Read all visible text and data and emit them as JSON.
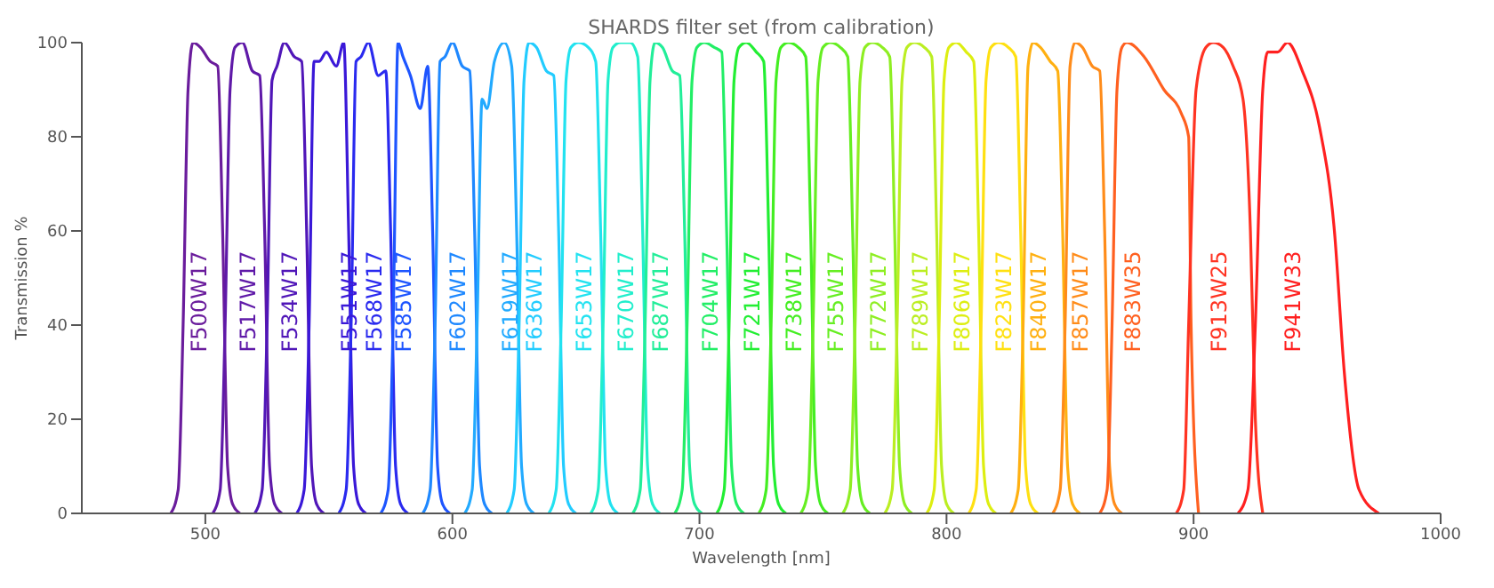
{
  "chart_data": {
    "type": "line",
    "title": "SHARDS filter set (from calibration)",
    "xlabel": "Wavelength [nm]",
    "ylabel": "Transmission %",
    "xlim": [
      450,
      1000
    ],
    "ylim": [
      0,
      100
    ],
    "xticks": [
      500,
      600,
      700,
      800,
      900,
      1000
    ],
    "yticks": [
      0,
      20,
      40,
      60,
      80,
      100
    ],
    "marker": "none",
    "line_style": "solid",
    "series": [
      {
        "name": "F500W17",
        "color": "#6a1c9c",
        "x": [
          486,
          489,
          491,
          493,
          495,
          498,
          502,
          505,
          507,
          509,
          511,
          514
        ],
        "values": [
          0,
          5,
          40,
          90,
          100,
          99,
          96,
          95,
          60,
          10,
          2,
          0
        ]
      },
      {
        "name": "F517W17",
        "color": "#5f19a8",
        "x": [
          503,
          506,
          508,
          510,
          512,
          515,
          519,
          522,
          524,
          526,
          528,
          531
        ],
        "values": [
          0,
          5,
          40,
          90,
          99,
          100,
          94,
          93,
          60,
          10,
          2,
          0
        ]
      },
      {
        "name": "F534W17",
        "color": "#5016b8",
        "x": [
          520,
          523,
          525,
          527,
          529,
          532,
          536,
          539,
          541,
          543,
          545,
          548
        ],
        "values": [
          0,
          5,
          40,
          92,
          95,
          100,
          97,
          96,
          60,
          10,
          2,
          0
        ]
      },
      {
        "name": "F551W17",
        "color": "#3a18d8",
        "x": [
          537,
          540,
          542,
          544,
          546,
          549,
          553,
          556,
          558,
          560,
          562,
          565
        ],
        "values": [
          0,
          5,
          40,
          96,
          96,
          98,
          95,
          100,
          60,
          10,
          2,
          0
        ]
      },
      {
        "name": "F568W17",
        "color": "#2a2aef",
        "x": [
          554,
          557,
          559,
          561,
          563,
          566,
          570,
          573,
          575,
          577,
          579,
          582
        ],
        "values": [
          0,
          5,
          40,
          96,
          97,
          100,
          93,
          94,
          60,
          10,
          2,
          0
        ]
      },
      {
        "name": "F585W17",
        "color": "#1e55ff",
        "x": [
          571,
          574,
          576,
          578,
          580,
          583,
          587,
          590,
          592,
          594,
          596,
          599
        ],
        "values": [
          0,
          5,
          40,
          100,
          97,
          93,
          86,
          95,
          60,
          10,
          2,
          0
        ]
      },
      {
        "name": "F602W17",
        "color": "#1e88ff",
        "x": [
          588,
          591,
          593,
          595,
          597,
          600,
          604,
          607,
          609,
          611,
          613,
          616
        ],
        "values": [
          0,
          5,
          40,
          96,
          97,
          100,
          95,
          94,
          60,
          10,
          2,
          0
        ]
      },
      {
        "name": "F619W17",
        "color": "#22aaff",
        "x": [
          605,
          608,
          610,
          612,
          614,
          617,
          621,
          624,
          626,
          628,
          630,
          633
        ],
        "values": [
          0,
          5,
          40,
          88,
          86,
          96,
          100,
          95,
          60,
          10,
          2,
          0
        ]
      },
      {
        "name": "F636W17",
        "color": "#22ccff",
        "x": [
          622,
          625,
          627,
          629,
          631,
          634,
          638,
          641,
          643,
          645,
          647,
          650
        ],
        "values": [
          0,
          5,
          40,
          92,
          100,
          99,
          94,
          93,
          60,
          10,
          2,
          0
        ]
      },
      {
        "name": "F653W17",
        "color": "#22e2f0",
        "x": [
          639,
          642,
          644,
          646,
          648,
          651,
          655,
          658,
          660,
          662,
          664,
          667
        ],
        "values": [
          0,
          5,
          40,
          92,
          99,
          100,
          99,
          96,
          60,
          10,
          2,
          0
        ]
      },
      {
        "name": "F670W17",
        "color": "#22eecc",
        "x": [
          656,
          659,
          661,
          663,
          665,
          668,
          672,
          675,
          677,
          679,
          681,
          684
        ],
        "values": [
          0,
          5,
          40,
          92,
          99,
          100,
          100,
          97,
          60,
          10,
          2,
          0
        ]
      },
      {
        "name": "F687W17",
        "color": "#22ee99",
        "x": [
          673,
          676,
          678,
          680,
          682,
          685,
          689,
          692,
          694,
          696,
          698,
          701
        ],
        "values": [
          0,
          5,
          40,
          92,
          100,
          99,
          94,
          93,
          60,
          10,
          2,
          0
        ]
      },
      {
        "name": "F704W17",
        "color": "#22ee66",
        "x": [
          690,
          693,
          695,
          697,
          699,
          702,
          706,
          709,
          711,
          713,
          715,
          718
        ],
        "values": [
          0,
          5,
          40,
          92,
          99,
          100,
          99,
          98,
          60,
          10,
          2,
          0
        ]
      },
      {
        "name": "F721W17",
        "color": "#22ee33",
        "x": [
          707,
          710,
          712,
          714,
          716,
          719,
          723,
          726,
          728,
          730,
          732,
          735
        ],
        "values": [
          0,
          5,
          40,
          92,
          99,
          100,
          98,
          96,
          60,
          10,
          2,
          0
        ]
      },
      {
        "name": "F738W17",
        "color": "#44ee22",
        "x": [
          724,
          727,
          729,
          731,
          733,
          736,
          740,
          743,
          745,
          747,
          749,
          752
        ],
        "values": [
          0,
          5,
          40,
          92,
          99,
          100,
          99,
          97,
          60,
          10,
          2,
          0
        ]
      },
      {
        "name": "F755W17",
        "color": "#66ee22",
        "x": [
          741,
          744,
          746,
          748,
          750,
          753,
          757,
          760,
          762,
          764,
          766,
          769
        ],
        "values": [
          0,
          5,
          40,
          92,
          99,
          100,
          99,
          97,
          60,
          10,
          2,
          0
        ]
      },
      {
        "name": "F772W17",
        "color": "#8eee22",
        "x": [
          758,
          761,
          763,
          765,
          767,
          770,
          774,
          777,
          779,
          781,
          783,
          786
        ],
        "values": [
          0,
          5,
          40,
          92,
          99,
          100,
          99,
          97,
          60,
          10,
          2,
          0
        ]
      },
      {
        "name": "F789W17",
        "color": "#bbee22",
        "x": [
          775,
          778,
          780,
          782,
          784,
          787,
          791,
          794,
          796,
          798,
          800,
          803
        ],
        "values": [
          0,
          5,
          40,
          92,
          99,
          100,
          99,
          97,
          60,
          10,
          2,
          0
        ]
      },
      {
        "name": "F806W17",
        "color": "#ddee11",
        "x": [
          792,
          795,
          797,
          799,
          801,
          804,
          808,
          811,
          813,
          815,
          817,
          820
        ],
        "values": [
          0,
          5,
          40,
          92,
          99,
          100,
          98,
          96,
          60,
          10,
          2,
          0
        ]
      },
      {
        "name": "F823W17",
        "color": "#ffe011",
        "x": [
          809,
          812,
          814,
          816,
          818,
          821,
          825,
          828,
          830,
          832,
          834,
          837
        ],
        "values": [
          0,
          5,
          40,
          92,
          99,
          100,
          99,
          97,
          60,
          10,
          2,
          0
        ]
      },
      {
        "name": "F840W17",
        "color": "#ffb011",
        "x": [
          826,
          829,
          831,
          833,
          835,
          838,
          842,
          845,
          847,
          849,
          851,
          854
        ],
        "values": [
          0,
          5,
          40,
          95,
          100,
          99,
          96,
          94,
          60,
          10,
          2,
          0
        ]
      },
      {
        "name": "F857W17",
        "color": "#ff8c1a",
        "x": [
          843,
          846,
          848,
          850,
          852,
          855,
          859,
          862,
          864,
          866,
          868,
          871
        ],
        "values": [
          0,
          5,
          40,
          95,
          100,
          99,
          95,
          94,
          60,
          10,
          2,
          0
        ]
      },
      {
        "name": "F883W35",
        "color": "#ff6020",
        "x": [
          862,
          865,
          867,
          869,
          871,
          873,
          880,
          888,
          895,
          898,
          899,
          902
        ],
        "values": [
          0,
          5,
          40,
          90,
          99,
          100,
          97,
          90,
          85,
          80,
          40,
          0
        ]
      },
      {
        "name": "F913W25",
        "color": "#ff3322",
        "x": [
          893,
          896,
          898,
          901,
          905,
          908,
          912,
          916,
          920,
          923,
          925,
          928
        ],
        "values": [
          0,
          5,
          40,
          90,
          99,
          100,
          99,
          95,
          88,
          60,
          20,
          0
        ]
      },
      {
        "name": "F941W33",
        "color": "#ff2020",
        "x": [
          918,
          922,
          925,
          928,
          930,
          934,
          938,
          944,
          951,
          957,
          961,
          967,
          975
        ],
        "values": [
          0,
          5,
          40,
          90,
          98,
          98,
          100,
          94,
          82,
          60,
          30,
          5,
          0
        ]
      }
    ]
  }
}
